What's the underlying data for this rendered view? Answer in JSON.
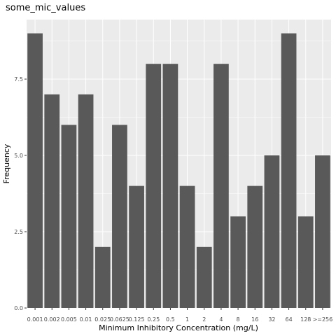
{
  "chart_data": {
    "type": "bar",
    "title": "some_mic_values",
    "xlabel": "Minimum Inhibitory Concentration (mg/L)",
    "ylabel": "Frequency",
    "categories": [
      "0.001",
      "0.002",
      "0.005",
      "0.01",
      "0.025",
      "0.0625",
      "0.125",
      "0.25",
      "0.5",
      "1",
      "2",
      "4",
      "8",
      "16",
      "32",
      "64",
      "128",
      ">=256"
    ],
    "values": [
      9,
      7,
      6,
      7,
      2,
      6,
      4,
      8,
      8,
      4,
      2,
      8,
      3,
      4,
      5,
      9,
      3,
      5
    ],
    "ylim": [
      0,
      9.45
    ],
    "yticks": [
      0,
      2.5,
      5,
      7.5
    ],
    "ytick_labels": [
      "0.0",
      "2.5",
      "5.0",
      "7.5"
    ],
    "grid": true,
    "legend": "none"
  },
  "colors": {
    "panel_background": "#ebebeb",
    "grid_major": "#ffffff",
    "bar_fill": "#595959",
    "tick_text": "#4d4d4d",
    "tick_mark": "#333333"
  }
}
